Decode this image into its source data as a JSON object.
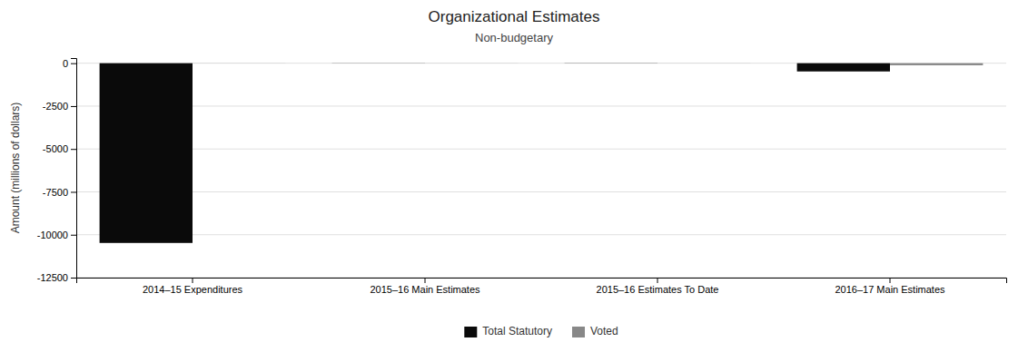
{
  "chart_data": {
    "type": "bar",
    "title": "Organizational Estimates",
    "subtitle": "Non-budgetary",
    "y_label": "Amount (millions of dollars)",
    "categories": [
      "2014–15 Expenditures",
      "2015–16 Main Estimates",
      "2015–16 Estimates To Date",
      "2016–17 Main Estimates"
    ],
    "series": [
      {
        "name": "Total Statutory",
        "color": "#0a0a0a",
        "values": [
          -10480,
          -8,
          -10,
          -480
        ]
      },
      {
        "name": "Voted",
        "color": "#888888",
        "values": [
          -5,
          -5,
          -5,
          -120
        ]
      }
    ],
    "ylim": [
      -12500,
      300
    ],
    "yticks": [
      0,
      -2500,
      -5000,
      -7500,
      -10000,
      -12500
    ],
    "grid": true,
    "legend": "bottom"
  }
}
